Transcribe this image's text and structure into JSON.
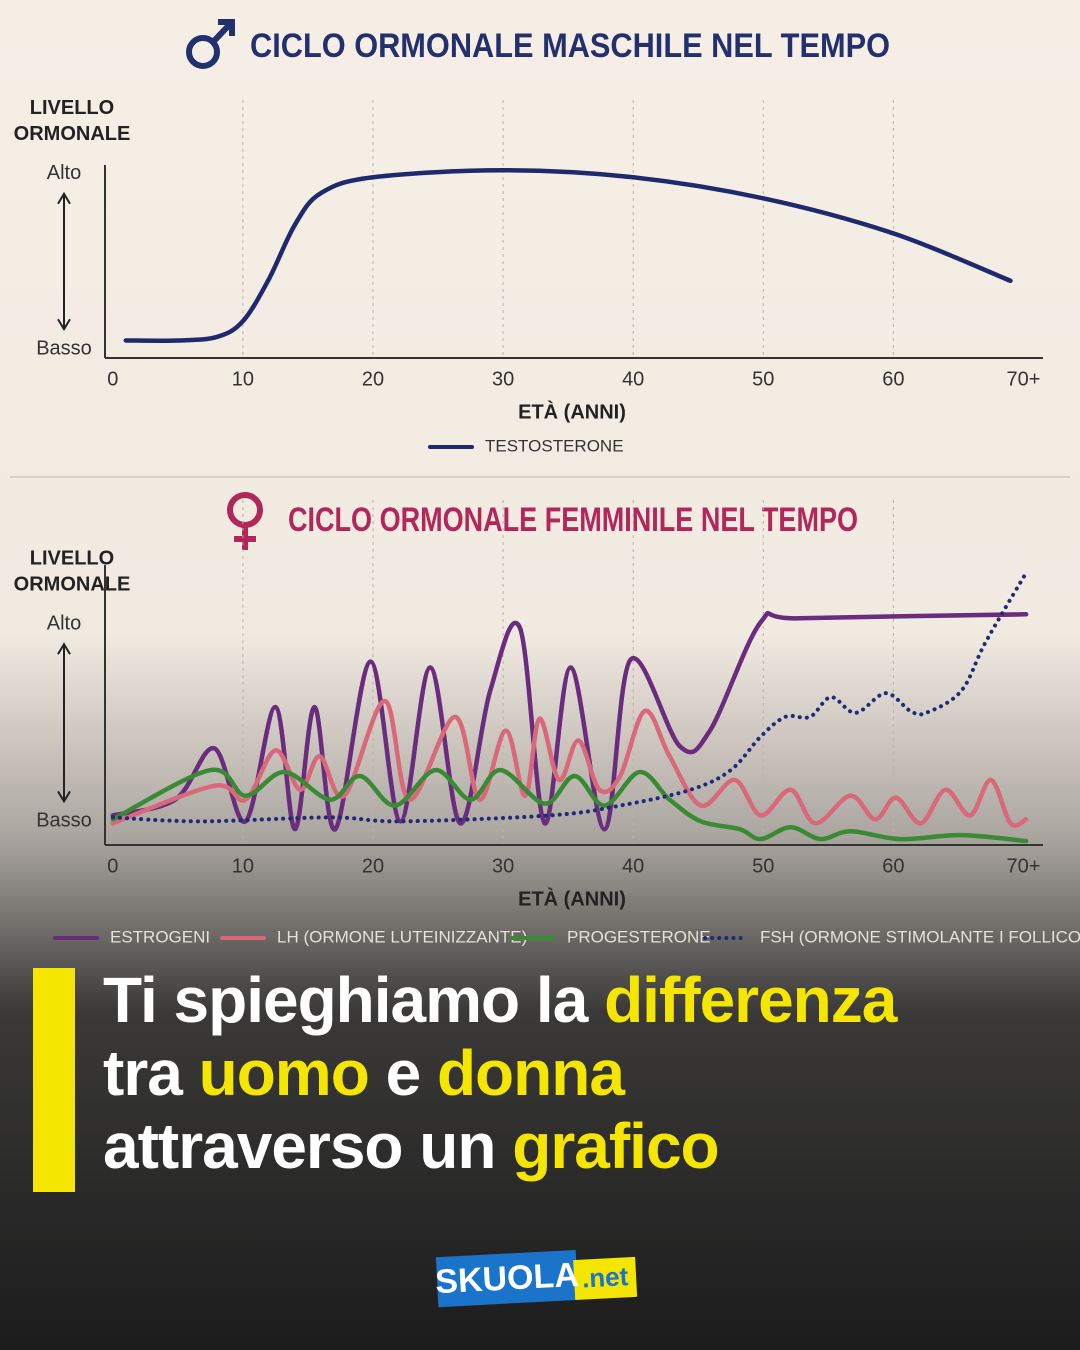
{
  "chart_data": [
    {
      "type": "line",
      "title": "CICLO ORMONALE MASCHILE NEL TEMPO",
      "title_color": "#23306e",
      "y_label": [
        "LIVELLO",
        "ORMONALE"
      ],
      "x_label": "ETÀ (ANNI)",
      "xlim": [
        -0.6,
        71.5
      ],
      "xticks": [
        0,
        10,
        20,
        30,
        40,
        50,
        60,
        {
          "value": 70,
          "label": "70+"
        }
      ],
      "ylim": [
        -5,
        105
      ],
      "yticks": [
        {
          "value": 0,
          "label": "Basso"
        },
        {
          "value": 100,
          "label": "Alto"
        }
      ],
      "grid": true,
      "legend": "bottom",
      "series": [
        {
          "name": "TESTOSTERONE",
          "color": "#1f2a6e",
          "style": "solid",
          "x": [
            1,
            5,
            8,
            10,
            12,
            14,
            16,
            20,
            30,
            40,
            50,
            60,
            69
          ],
          "values": [
            5,
            5,
            7,
            16,
            40,
            71,
            89,
            98,
            102,
            98,
            86,
            66,
            39
          ]
        }
      ]
    },
    {
      "type": "line",
      "title": "CICLO ORMONALE FEMMINILE NEL TEMPO",
      "title_color": "#b3265a",
      "y_label": [
        "LIVELLO",
        "ORMONALE"
      ],
      "x_label": "ETÀ (ANNI)",
      "xlim": [
        -0.6,
        71.5
      ],
      "xticks": [
        0,
        10,
        20,
        30,
        40,
        50,
        60,
        {
          "value": 70,
          "label": "70+"
        }
      ],
      "ylim": [
        -12,
        130
      ],
      "yticks": [
        {
          "value": 0,
          "label": "Basso"
        },
        {
          "value": 100,
          "label": "Alto"
        }
      ],
      "grid": true,
      "legend": "bottom",
      "series": [
        {
          "name": "ESTROGENI",
          "color": "#6a2c7d",
          "style": "solid",
          "x": [
            0,
            4.8,
            7.8,
            10.2,
            12.5,
            14,
            15.5,
            17.1,
            19.8,
            22.1,
            24.4,
            26.7,
            29,
            31.3,
            33.2,
            35.2,
            37.8,
            39.8,
            43.6,
            45.9,
            49.8,
            52.8,
            70.2
          ],
          "values": [
            3,
            11,
            37,
            0,
            58,
            -4,
            58,
            -4,
            81,
            0,
            78,
            -1,
            66,
            98,
            -1,
            78,
            -4,
            82,
            38,
            46,
            101,
            103,
            105
          ]
        },
        {
          "name": "LH (ORMONE LUTEINIZZANTE)",
          "color": "#d9687a",
          "style": "solid",
          "x": [
            0,
            7.8,
            10.2,
            12.5,
            14.4,
            15.9,
            17.8,
            20.9,
            22.8,
            26.3,
            28.2,
            30.2,
            31.7,
            32.8,
            34.3,
            35.8,
            37.4,
            39,
            40.9,
            42.8,
            45.2,
            47.8,
            49.8,
            52.1,
            54,
            56.7,
            58.6,
            60.2,
            62.1,
            64,
            65.9,
            67.5,
            69,
            70.2
          ],
          "values": [
            -1,
            18,
            11,
            36,
            16,
            33,
            13,
            61,
            11,
            53,
            11,
            46,
            13,
            52,
            21,
            41,
            16,
            23,
            56,
            33,
            8,
            21,
            3,
            16,
            -1,
            13,
            1,
            12,
            -1,
            16,
            3,
            21,
            -1,
            1
          ]
        },
        {
          "name": "PROGESTERONE",
          "color": "#3a8a35",
          "style": "solid",
          "x": [
            0,
            7.5,
            10.2,
            13.2,
            16.7,
            19,
            21.7,
            24.8,
            27.5,
            29.8,
            33.2,
            35.5,
            37.8,
            40.5,
            42.8,
            45.2,
            48.2,
            49.8,
            52.1,
            54.4,
            56.7,
            60.5,
            65.2,
            70.2
          ],
          "values": [
            1,
            26,
            13,
            25,
            11,
            23,
            8,
            26,
            11,
            26,
            9,
            23,
            8,
            25,
            11,
            0,
            -4,
            -9,
            -3,
            -9,
            -5,
            -9,
            -7,
            -10
          ]
        },
        {
          "name": "FSH (ORMONE STIMOLANTE I FOLLICOLI)",
          "color": "#1f2a78",
          "style": "dotted",
          "x": [
            0,
            6.7,
            16.7,
            22.1,
            33.6,
            39,
            44.4,
            47.5,
            49.8,
            51.7,
            53.6,
            55.2,
            57.1,
            59.4,
            61.3,
            62.5,
            65.2,
            67.1,
            70.2
          ],
          "values": [
            2,
            0,
            2,
            0,
            3,
            8,
            16,
            26,
            43,
            53,
            53,
            63,
            55,
            65,
            56,
            55,
            66,
            91,
            126
          ]
        }
      ]
    }
  ],
  "headline": {
    "highlight_color": "#f5e600",
    "lines": [
      [
        {
          "text": "Ti spieghiamo la ",
          "highlight": false
        },
        {
          "text": "differenza",
          "highlight": true
        }
      ],
      [
        {
          "text": "tra ",
          "highlight": false
        },
        {
          "text": "uomo",
          "highlight": true
        },
        {
          "text": " e ",
          "highlight": false
        },
        {
          "text": "donna",
          "highlight": true
        }
      ],
      [
        {
          "text": "attraverso un ",
          "highlight": false
        },
        {
          "text": "grafico",
          "highlight": true
        }
      ]
    ]
  },
  "logo": {
    "brand": "SKUOLA",
    "suffix": ".net"
  }
}
